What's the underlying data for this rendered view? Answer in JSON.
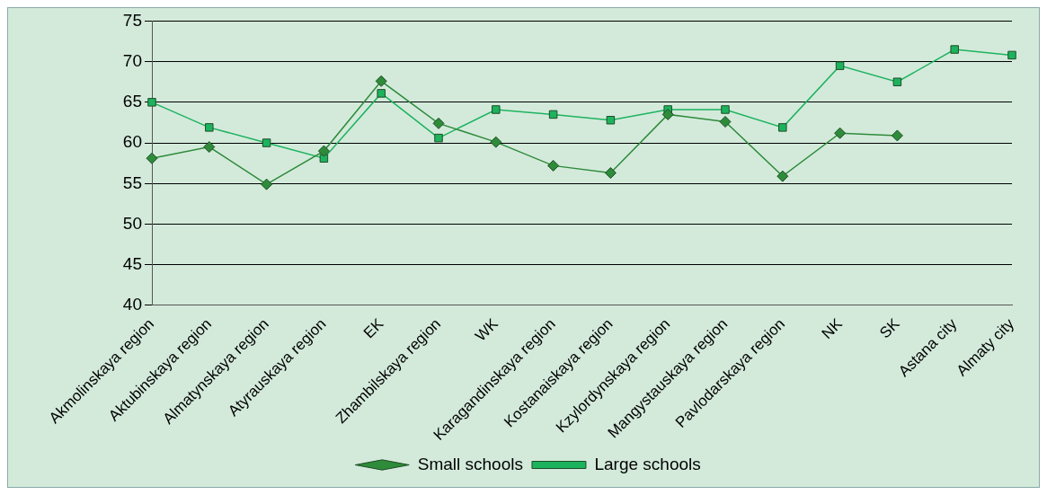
{
  "chart_data": {
    "type": "line",
    "categories": [
      "Akmolinskaya region",
      "Aktubinskaya region",
      "Almatynskaya region",
      "Atyrauskaya region",
      "EK",
      "Zhambilskaya region",
      "WK",
      "Karagandinskaya region",
      "Kostanaiskaya region",
      "Kzylordynskaya region",
      "Mangystauskaya region",
      "Pavlodarskaya region",
      "NK",
      "SK",
      "Astana city",
      "Almaty city"
    ],
    "series": [
      {
        "name": "Small schools",
        "color": "#2e8b3a",
        "marker": "diamond",
        "values": [
          58.1,
          59.5,
          54.9,
          59.0,
          67.6,
          62.4,
          60.1,
          57.2,
          56.3,
          63.5,
          62.6,
          55.9,
          61.2,
          60.9,
          null,
          null
        ]
      },
      {
        "name": "Large schools",
        "color": "#1db35e",
        "marker": "square",
        "values": [
          65.0,
          61.9,
          60.0,
          58.1,
          66.1,
          60.6,
          64.1,
          63.5,
          62.8,
          64.1,
          64.1,
          61.9,
          69.5,
          67.5,
          71.5,
          70.8
        ]
      }
    ],
    "ylim": [
      40,
      75
    ],
    "yticks": [
      40,
      45,
      50,
      55,
      60,
      65,
      70,
      75
    ],
    "grid": "y",
    "legend": "bottom",
    "line_style": "solid"
  }
}
